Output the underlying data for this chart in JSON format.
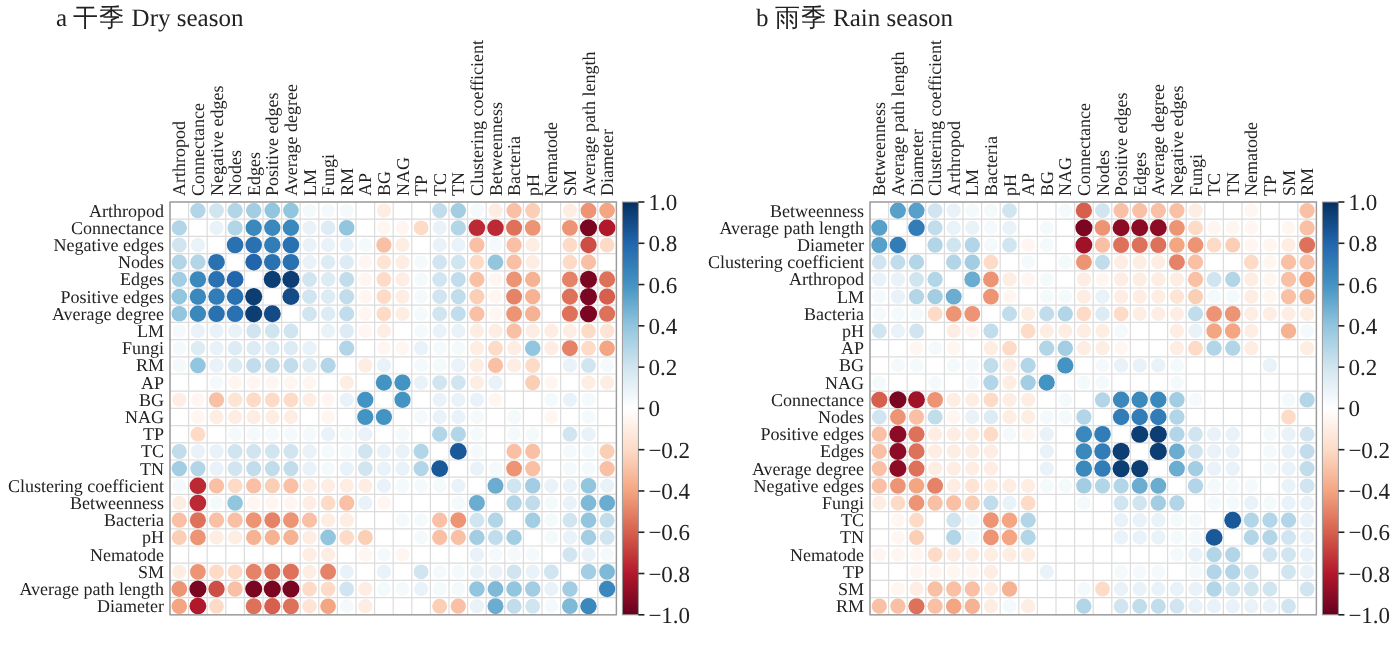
{
  "chart_data": [
    {
      "type": "heatmap",
      "title": "a 干季 Dry season",
      "grid": true,
      "categories": [
        "Arthropod",
        "Connectance",
        "Negative edges",
        "Nodes",
        "Edges",
        "Positive edges",
        "Average degree",
        "LM",
        "Fungi",
        "RM",
        "AP",
        "BG",
        "NAG",
        "TP",
        "TC",
        "TN",
        "Clustering coefficient",
        "Betweenness",
        "Bacteria",
        "pH",
        "Nematode",
        "SM",
        "Average path length",
        "Diameter"
      ],
      "y_categories": [
        "Arthropod",
        "Connectance",
        "Negative edges",
        "Nodes",
        "Edges",
        "Positive edges",
        "Average degree",
        "LM",
        "Fungi",
        "RM",
        "AP",
        "BG",
        "NAG",
        "TP",
        "TC",
        "TN",
        "Clustering coefficient",
        "Betweenness",
        "Bacteria",
        "pH",
        "Nematode",
        "SM",
        "Average path length",
        "Diameter"
      ],
      "clim": [
        -1,
        1
      ],
      "cticks": [
        {
          "value": 1,
          "label": "1.0"
        },
        0.8,
        0.6,
        0.4,
        0.2,
        0,
        {
          "value": -0.2,
          "label": "−0.2"
        },
        {
          "value": -0.4,
          "label": "−0.4"
        },
        {
          "value": -0.6,
          "label": "−0.6"
        },
        {
          "value": -0.8,
          "label": "−0.8"
        },
        {
          "value": -1,
          "label": "−1.0"
        }
      ],
      "cells": [
        [
          null,
          0.3,
          0.2,
          0.3,
          0.35,
          0.4,
          0.4,
          0.05,
          0.05,
          0.05,
          0,
          -0.1,
          0,
          0,
          0.25,
          0.35,
          0.05,
          -0.1,
          -0.3,
          -0.25,
          0,
          -0.1,
          -0.45,
          -0.4
        ],
        [
          0.3,
          null,
          0.1,
          0.3,
          0.65,
          0.65,
          0.65,
          0.1,
          0.15,
          0.4,
          0,
          -0.05,
          -0.05,
          -0.2,
          0.1,
          0.3,
          -0.75,
          -0.75,
          -0.55,
          -0.45,
          0,
          -0.45,
          -0.95,
          -0.8
        ],
        [
          0.2,
          0.1,
          null,
          0.75,
          0.75,
          0.7,
          0.75,
          0.1,
          0.1,
          0.1,
          0.05,
          -0.3,
          -0.1,
          0,
          0.1,
          0.1,
          -0.3,
          0.05,
          -0.3,
          -0.1,
          0,
          -0.2,
          -0.65,
          -0.2
        ],
        [
          0.3,
          0.3,
          0.75,
          null,
          0.8,
          0.75,
          0.75,
          0.1,
          0.15,
          0.15,
          -0.05,
          -0.15,
          -0.1,
          0.05,
          0.2,
          0.2,
          -0.2,
          0.4,
          -0.3,
          -0.1,
          0,
          -0.2,
          -0.3,
          0
        ],
        [
          0.35,
          0.65,
          0.75,
          0.8,
          null,
          0.95,
          0.95,
          0.2,
          0.15,
          0.25,
          -0.05,
          -0.2,
          -0.1,
          0.05,
          0.2,
          0.25,
          -0.3,
          -0.05,
          -0.45,
          -0.35,
          0,
          -0.5,
          -0.95,
          -0.55
        ],
        [
          0.4,
          0.65,
          0.7,
          0.75,
          0.95,
          null,
          0.9,
          0.2,
          0.15,
          0.25,
          -0.05,
          -0.2,
          -0.1,
          0.05,
          0.2,
          0.25,
          -0.25,
          -0.05,
          -0.5,
          -0.35,
          0,
          -0.55,
          -0.95,
          -0.6
        ],
        [
          0.4,
          0.65,
          0.75,
          0.75,
          0.95,
          0.9,
          null,
          0.2,
          0.15,
          0.25,
          -0.05,
          -0.2,
          -0.1,
          0.05,
          0.2,
          0.25,
          -0.3,
          -0.05,
          -0.45,
          -0.35,
          0,
          -0.55,
          -0.95,
          -0.55
        ],
        [
          0.05,
          0.1,
          0.1,
          0.1,
          0.2,
          0.2,
          0.2,
          null,
          0.1,
          0.15,
          -0.05,
          -0.1,
          0,
          0.05,
          0.1,
          0.1,
          -0.1,
          -0.1,
          -0.3,
          -0.1,
          -0.1,
          -0.1,
          -0.2,
          -0.15
        ],
        [
          0.05,
          0.15,
          0.1,
          0.15,
          0.15,
          0.15,
          0.15,
          0.1,
          null,
          0.3,
          0,
          -0.05,
          -0.05,
          0.1,
          0.05,
          0.05,
          -0.1,
          -0.2,
          -0.1,
          0.4,
          -0.1,
          -0.5,
          -0.2,
          -0.4
        ],
        [
          0.05,
          0.4,
          0.1,
          0.15,
          0.25,
          0.25,
          0.25,
          0.15,
          0.3,
          null,
          -0.1,
          0.1,
          0,
          0.05,
          0.05,
          0.1,
          -0.1,
          -0.3,
          -0.1,
          -0.2,
          0,
          0.1,
          0.2,
          0.05
        ],
        [
          0,
          0,
          0.05,
          -0.05,
          -0.05,
          -0.05,
          -0.05,
          -0.05,
          0,
          -0.1,
          null,
          0.6,
          0.6,
          0.1,
          0.2,
          0.2,
          -0.1,
          0.1,
          0,
          -0.25,
          -0.05,
          0,
          -0.1,
          -0.1
        ],
        [
          -0.1,
          -0.05,
          -0.3,
          -0.15,
          -0.2,
          -0.2,
          -0.2,
          -0.1,
          -0.05,
          0.1,
          0.6,
          null,
          0.6,
          0,
          0.1,
          0.1,
          0.1,
          -0.05,
          0,
          0,
          0.05,
          0.1,
          0.05,
          0
        ],
        [
          0,
          -0.05,
          -0.1,
          -0.1,
          -0.1,
          -0.1,
          -0.1,
          0,
          -0.05,
          0,
          0.6,
          0.6,
          null,
          0.05,
          0.1,
          0.1,
          0.05,
          0,
          0.05,
          0,
          -0.05,
          0,
          0.05,
          0
        ],
        [
          0,
          -0.2,
          0,
          0.05,
          0.05,
          0.05,
          0.05,
          0.05,
          0.1,
          0.05,
          0.1,
          0,
          0.05,
          null,
          0.3,
          0.3,
          0.05,
          0,
          0.05,
          0.05,
          0,
          0.2,
          0.1,
          0
        ],
        [
          0.25,
          0.1,
          0.1,
          0.2,
          0.2,
          0.2,
          0.2,
          0.1,
          0.05,
          0.05,
          0.2,
          0.1,
          0.1,
          0.3,
          null,
          0.85,
          0.05,
          0,
          -0.3,
          -0.3,
          0,
          0.05,
          0.05,
          -0.25
        ],
        [
          0.35,
          0.3,
          0.1,
          0.2,
          0.25,
          0.25,
          0.25,
          0.1,
          0.05,
          0.1,
          0.2,
          0.1,
          0.1,
          0.3,
          0.85,
          null,
          0.1,
          0.05,
          -0.45,
          -0.3,
          0,
          0.05,
          0.05,
          -0.3
        ],
        [
          0.05,
          -0.75,
          -0.3,
          -0.2,
          -0.3,
          -0.25,
          -0.3,
          -0.1,
          -0.1,
          -0.1,
          -0.1,
          0.1,
          0.05,
          0.05,
          0.05,
          0.1,
          null,
          0.5,
          0.2,
          0.35,
          0.1,
          0.1,
          0.4,
          0.1
        ],
        [
          -0.1,
          -0.75,
          0.05,
          0.4,
          -0.05,
          -0.05,
          -0.05,
          -0.1,
          -0.2,
          -0.3,
          0.1,
          -0.05,
          0,
          0,
          0,
          0.05,
          0.5,
          null,
          0.3,
          0.25,
          0.05,
          0.1,
          0.45,
          0.5
        ],
        [
          -0.3,
          -0.55,
          -0.3,
          -0.3,
          -0.45,
          -0.5,
          -0.45,
          -0.3,
          -0.1,
          -0.1,
          0,
          0,
          0.05,
          0.05,
          -0.3,
          -0.45,
          0.2,
          0.3,
          null,
          0.35,
          0.05,
          0.2,
          0.4,
          0.25
        ],
        [
          -0.25,
          -0.45,
          -0.1,
          -0.1,
          -0.35,
          -0.35,
          -0.35,
          -0.1,
          0.4,
          -0.2,
          -0.25,
          0,
          0,
          0.05,
          -0.3,
          -0.3,
          0.35,
          0.25,
          0.35,
          null,
          0.05,
          0.1,
          0.35,
          0.2
        ],
        [
          0,
          0,
          0,
          0,
          0,
          0,
          0,
          -0.1,
          -0.1,
          0,
          -0.05,
          0.05,
          -0.05,
          0,
          0,
          0,
          0.1,
          0.05,
          0.05,
          0.05,
          null,
          0.2,
          0.1,
          0.05
        ],
        [
          -0.1,
          -0.45,
          -0.2,
          -0.2,
          -0.5,
          -0.55,
          -0.55,
          -0.1,
          -0.5,
          0.1,
          0,
          0.1,
          0,
          0.2,
          0.05,
          0.05,
          0.1,
          0.1,
          0.2,
          0.1,
          0.2,
          null,
          0.35,
          0.45
        ],
        [
          -0.45,
          -0.95,
          -0.65,
          -0.3,
          -0.95,
          -0.95,
          -0.95,
          -0.2,
          -0.2,
          0.2,
          -0.1,
          0.05,
          0.05,
          0.1,
          0.05,
          0.05,
          0.4,
          0.45,
          0.4,
          0.35,
          0.1,
          0.35,
          null,
          0.65
        ],
        [
          -0.4,
          -0.8,
          -0.2,
          0,
          -0.55,
          -0.6,
          -0.55,
          -0.15,
          -0.4,
          0.05,
          -0.1,
          0,
          0,
          0,
          -0.25,
          -0.3,
          0.1,
          0.5,
          0.25,
          0.2,
          0.05,
          0.45,
          0.65,
          null
        ]
      ]
    },
    {
      "type": "heatmap",
      "title": "b 雨季 Rain season",
      "grid": true,
      "categories": [
        "Betweenness",
        "Average path length",
        "Diameter",
        "Clustering coefficient",
        "Arthropod",
        "LM",
        "Bacteria",
        "pH",
        "AP",
        "BG",
        "NAG",
        "Connectance",
        "Nodes",
        "Positive edges",
        "Edges",
        "Average degree",
        "Negative edges",
        "Fungi",
        "TC",
        "TN",
        "Nematode",
        "TP",
        "SM",
        "RM"
      ],
      "y_categories": [
        "Betweenness",
        "Average path length",
        "Diameter",
        "Clustering coefficient",
        "Arthropod",
        "LM",
        "Bacteria",
        "pH",
        "AP",
        "BG",
        "NAG",
        "Connectance",
        "Nodes",
        "Positive edges",
        "Edges",
        "Average degree",
        "Negative edges",
        "Fungi",
        "TC",
        "TN",
        "Nematode",
        "TP",
        "SM",
        "RM"
      ],
      "clim": [
        -1,
        1
      ],
      "cticks": [
        {
          "value": 1,
          "label": "1.0"
        },
        0.8,
        0.6,
        0.4,
        0.2,
        0,
        {
          "value": -0.2,
          "label": "−0.2"
        },
        {
          "value": -0.4,
          "label": "−0.4"
        },
        {
          "value": -0.6,
          "label": "−0.6"
        },
        {
          "value": -0.8,
          "label": "−0.8"
        },
        {
          "value": -1,
          "label": "−1.0"
        }
      ],
      "cells": [
        [
          null,
          0.55,
          0.55,
          0.2,
          0.1,
          0.05,
          0.05,
          0.2,
          0,
          0,
          0.05,
          -0.6,
          0.2,
          -0.3,
          -0.3,
          -0.3,
          -0.3,
          -0.1,
          0,
          0,
          -0.05,
          0,
          0,
          -0.3
        ],
        [
          0.55,
          null,
          0.7,
          0.25,
          0.1,
          0.1,
          0.05,
          0.1,
          0,
          0.05,
          0,
          -0.95,
          -0.45,
          -0.9,
          -0.9,
          -0.9,
          -0.45,
          -0.2,
          -0.05,
          -0.05,
          -0.05,
          0,
          -0.05,
          -0.3
        ],
        [
          0.55,
          0.7,
          null,
          0.3,
          0.2,
          0.3,
          0.05,
          0.2,
          -0.05,
          0.05,
          0,
          -0.85,
          -0.3,
          -0.55,
          -0.55,
          -0.55,
          -0.4,
          -0.45,
          -0.2,
          -0.25,
          -0.05,
          -0.05,
          -0.1,
          -0.55
        ],
        [
          0.2,
          0.25,
          0.3,
          null,
          0.3,
          0.35,
          -0.2,
          0,
          0.05,
          0,
          0.05,
          -0.45,
          0.25,
          -0.1,
          -0.1,
          -0.1,
          -0.5,
          -0.3,
          0,
          0,
          -0.2,
          -0.05,
          -0.3,
          -0.3
        ],
        [
          0.1,
          0.1,
          0.2,
          0.3,
          null,
          0.5,
          -0.45,
          -0.1,
          -0.05,
          0.05,
          0,
          -0.1,
          -0.05,
          -0.1,
          -0.1,
          -0.1,
          -0.1,
          -0.3,
          0.2,
          0.3,
          -0.1,
          -0.05,
          -0.3,
          -0.4
        ],
        [
          0.05,
          0.1,
          0.3,
          0.35,
          0.5,
          null,
          -0.45,
          -0.05,
          0,
          0.05,
          0.05,
          -0.1,
          0.1,
          -0.1,
          -0.1,
          -0.1,
          -0.15,
          -0.25,
          0.05,
          0.05,
          -0.1,
          -0.05,
          -0.3,
          -0.35
        ],
        [
          0.05,
          0.05,
          0.05,
          -0.2,
          -0.45,
          -0.45,
          null,
          0.25,
          -0.1,
          0.25,
          0.3,
          -0.2,
          0.15,
          -0.2,
          -0.1,
          -0.1,
          -0.1,
          0.25,
          -0.45,
          -0.45,
          -0.1,
          -0.1,
          -0.1,
          -0.1
        ],
        [
          0.2,
          0.1,
          0.2,
          0,
          -0.1,
          -0.05,
          0.25,
          null,
          -0.2,
          -0.1,
          -0.1,
          -0.1,
          -0.1,
          0.05,
          0,
          0,
          -0.1,
          0.1,
          -0.4,
          -0.4,
          -0.1,
          0,
          -0.35,
          0.05
        ],
        [
          0,
          0,
          -0.05,
          0.05,
          -0.05,
          0,
          -0.1,
          -0.2,
          null,
          0.3,
          0.35,
          -0.1,
          -0.1,
          -0.05,
          0,
          0,
          -0.1,
          -0.2,
          0.3,
          0.3,
          -0.1,
          0,
          0,
          -0.1
        ],
        [
          0,
          0.05,
          0.05,
          0,
          0.05,
          0.05,
          0.25,
          -0.1,
          0.3,
          null,
          0.6,
          0,
          0.05,
          0.1,
          0.1,
          0.1,
          0.05,
          0,
          0,
          0,
          0,
          0.1,
          0,
          0
        ],
        [
          0.05,
          0,
          0,
          0.05,
          0,
          0.05,
          0.3,
          -0.1,
          0.35,
          0.6,
          null,
          0.05,
          0.05,
          0,
          0,
          0,
          0.05,
          0,
          0,
          0,
          0,
          0,
          0,
          0
        ],
        [
          -0.6,
          -0.95,
          -0.85,
          -0.45,
          -0.1,
          -0.1,
          -0.2,
          -0.1,
          -0.1,
          0,
          0.05,
          null,
          0.3,
          0.65,
          0.65,
          0.65,
          0.35,
          0.05,
          0,
          0,
          0,
          0,
          0.05,
          0.3
        ],
        [
          0.2,
          -0.45,
          -0.3,
          0.25,
          -0.05,
          0.1,
          0.15,
          -0.1,
          -0.1,
          0.05,
          0.05,
          0.3,
          null,
          0.7,
          0.7,
          0.7,
          0.3,
          0,
          0,
          0,
          0,
          0,
          -0.2,
          0
        ],
        [
          -0.3,
          -0.9,
          -0.55,
          -0.1,
          -0.1,
          -0.1,
          -0.2,
          0.05,
          -0.05,
          0.1,
          0,
          0.65,
          0.7,
          null,
          0.95,
          0.95,
          0.3,
          0.2,
          0.1,
          0.1,
          0,
          0.05,
          0.1,
          0.2
        ],
        [
          -0.3,
          -0.9,
          -0.55,
          -0.1,
          -0.1,
          -0.1,
          -0.1,
          0,
          0,
          0.1,
          0,
          0.65,
          0.7,
          0.95,
          null,
          0.95,
          0.5,
          0.2,
          0.1,
          0.1,
          0,
          0.05,
          0.1,
          0.25
        ],
        [
          -0.3,
          -0.9,
          -0.55,
          -0.1,
          -0.1,
          -0.1,
          -0.1,
          0,
          0,
          0.1,
          0,
          0.65,
          0.7,
          0.95,
          0.95,
          null,
          0.5,
          0.35,
          0.1,
          0.1,
          0,
          0.05,
          0.1,
          0.25
        ],
        [
          -0.3,
          -0.45,
          -0.4,
          -0.5,
          -0.1,
          -0.15,
          -0.1,
          -0.1,
          -0.1,
          0.05,
          0.05,
          0.35,
          0.3,
          0.3,
          0.5,
          0.5,
          null,
          0.3,
          0.05,
          0.05,
          0.05,
          0,
          0.1,
          0.2
        ],
        [
          -0.1,
          -0.2,
          -0.45,
          -0.3,
          -0.3,
          -0.25,
          0.25,
          0.1,
          -0.2,
          0,
          0,
          0.05,
          0,
          0.2,
          0.2,
          0.35,
          0.3,
          null,
          0.05,
          0.05,
          0.1,
          0.05,
          0.1,
          0.1
        ],
        [
          0,
          -0.05,
          -0.2,
          0,
          0.2,
          0.05,
          -0.45,
          -0.4,
          0.3,
          0,
          0,
          0,
          0,
          0.1,
          0.1,
          0.1,
          0.05,
          0.05,
          null,
          0.85,
          0.3,
          0.3,
          0.3,
          0.1
        ],
        [
          0,
          -0.05,
          -0.25,
          0,
          0.3,
          0.05,
          -0.45,
          -0.4,
          0.3,
          0,
          0,
          0,
          0,
          0.1,
          0.1,
          0.1,
          0.05,
          0.05,
          0.85,
          null,
          0.3,
          0.3,
          0.2,
          0.1
        ],
        [
          -0.05,
          -0.05,
          -0.05,
          -0.2,
          -0.1,
          -0.1,
          -0.1,
          -0.1,
          -0.1,
          0,
          0,
          0,
          0,
          0,
          0,
          0,
          0.05,
          0.1,
          0.3,
          0.3,
          null,
          0.2,
          0.2,
          0.1
        ],
        [
          0,
          0,
          -0.05,
          -0.05,
          -0.05,
          -0.05,
          -0.1,
          0,
          0,
          0.1,
          0,
          0,
          0,
          0.05,
          0.05,
          0.05,
          0,
          0.05,
          0.3,
          0.3,
          0.2,
          null,
          0.2,
          0.1
        ],
        [
          0,
          -0.05,
          -0.1,
          -0.3,
          -0.3,
          -0.3,
          -0.1,
          -0.35,
          0,
          0,
          0,
          0.05,
          -0.2,
          0.1,
          0.1,
          0.1,
          0.1,
          0.1,
          0.3,
          0.2,
          0.2,
          0.2,
          null,
          0.2
        ],
        [
          -0.3,
          -0.3,
          -0.55,
          -0.3,
          -0.4,
          -0.35,
          -0.1,
          0.05,
          -0.1,
          0,
          0,
          0.3,
          0,
          0.2,
          0.25,
          0.25,
          0.2,
          0.1,
          0.1,
          0.1,
          0.1,
          0.1,
          0.2,
          null
        ]
      ]
    }
  ]
}
